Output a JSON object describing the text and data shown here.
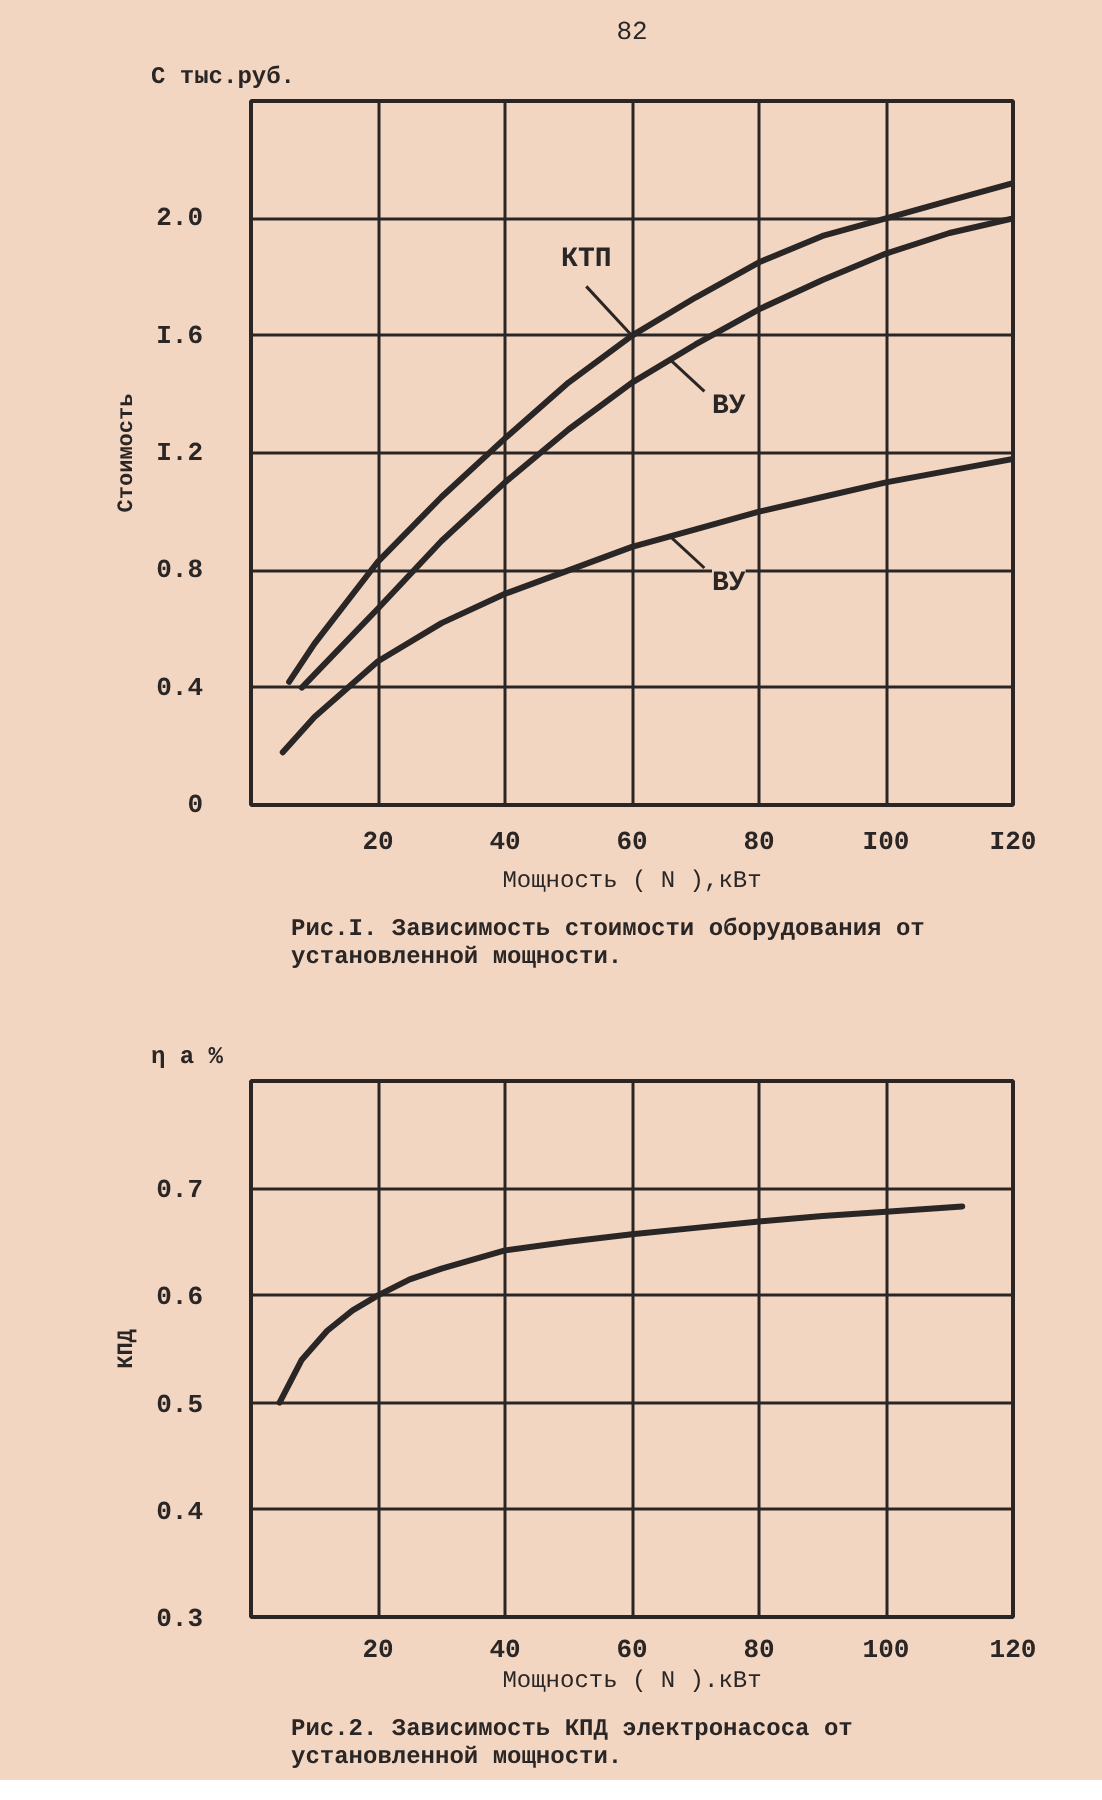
{
  "chart_data": [
    {
      "type": "line",
      "title": "Рис.I. Зависимость стоимости оборудования от установленной мощности.",
      "xlabel": "Мощность ( N ),кВт",
      "ylabel": "Стоимость",
      "annotations": [
        "82",
        "С тыс.руб."
      ],
      "xlim": [
        0,
        120
      ],
      "ylim": [
        0,
        2.4
      ],
      "xticks": [
        {
          "value": 0,
          "label": null
        },
        20,
        40,
        60,
        80,
        {
          "value": 100,
          "label": "I00"
        },
        {
          "value": 120,
          "label": "I20"
        }
      ],
      "yticks": [
        0,
        0.4,
        0.8,
        {
          "value": 1.2,
          "label": "I.2"
        },
        {
          "value": 1.6,
          "label": "I.6"
        },
        {
          "value": 2.0,
          "label": "2.0"
        },
        {
          "value": 2.4,
          "label": null
        }
      ],
      "grid": true,
      "series": [
        {
          "name": "КТП",
          "color": "#2a2626",
          "x": [
            6,
            10,
            20,
            30,
            40,
            50,
            60,
            70,
            80,
            90,
            100,
            110,
            120
          ],
          "values": [
            0.42,
            0.55,
            0.83,
            1.05,
            1.25,
            1.44,
            1.6,
            1.73,
            1.85,
            1.94,
            2.0,
            2.06,
            2.12
          ]
        },
        {
          "name": "ВУ",
          "color": "#2a2626",
          "x": [
            8,
            20,
            30,
            40,
            50,
            60,
            70,
            80,
            90,
            100,
            110,
            120
          ],
          "values": [
            0.4,
            0.67,
            0.9,
            1.1,
            1.28,
            1.44,
            1.57,
            1.69,
            1.79,
            1.88,
            1.95,
            2.0
          ]
        },
        {
          "name": "ВУ",
          "color": "#2a2626",
          "x": [
            5,
            10,
            20,
            30,
            40,
            50,
            60,
            70,
            80,
            90,
            100,
            110,
            120
          ],
          "values": [
            0.18,
            0.3,
            0.49,
            0.62,
            0.72,
            0.8,
            0.88,
            0.94,
            1.0,
            1.05,
            1.1,
            1.14,
            1.18
          ]
        }
      ]
    },
    {
      "type": "line",
      "title": "Рис.2. Зависимость КПД электронасоса от установленной мощности.",
      "xlabel": "Мощность ( N ).кВт",
      "ylabel": "КПД",
      "annotations": [
        "η а %"
      ],
      "xlim": [
        0,
        120
      ],
      "ylim": [
        0.3,
        0.8
      ],
      "xticks": [
        {
          "value": 0,
          "label": null
        },
        20,
        40,
        60,
        80,
        100,
        120
      ],
      "yticks": [
        0.3,
        0.4,
        0.5,
        0.6,
        0.7,
        {
          "value": 0.8,
          "label": null
        }
      ],
      "grid": true,
      "series": [
        {
          "color": "#2a2626",
          "x": [
            4.5,
            8,
            12,
            16,
            20,
            25,
            30,
            40,
            50,
            60,
            70,
            80,
            90,
            100,
            112
          ],
          "values": [
            0.5,
            0.54,
            0.567,
            0.586,
            0.6,
            0.615,
            0.625,
            0.642,
            0.65,
            0.657,
            0.663,
            0.669,
            0.674,
            0.678,
            0.683
          ]
        }
      ]
    }
  ]
}
